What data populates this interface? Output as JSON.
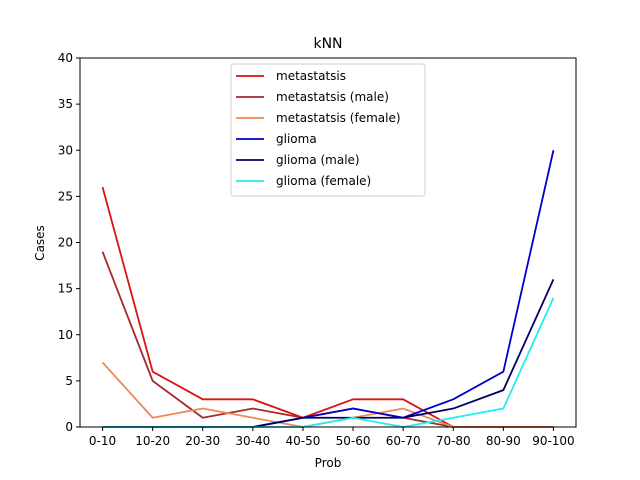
{
  "chart_data": {
    "type": "line",
    "title": "kNN",
    "xlabel": "Prob",
    "ylabel": "Cases",
    "ylim": [
      0,
      40
    ],
    "yticks": [
      0,
      5,
      10,
      15,
      20,
      25,
      30,
      35,
      40
    ],
    "categories": [
      "0-10",
      "10-20",
      "20-30",
      "30-40",
      "40-50",
      "50-60",
      "60-70",
      "70-80",
      "80-90",
      "90-100"
    ],
    "grid": false,
    "legend_position": "top-center",
    "series": [
      {
        "name": "metastatsis",
        "color": "#dd1111",
        "values": [
          26,
          6,
          3,
          3,
          1,
          3,
          3,
          0,
          0,
          0
        ]
      },
      {
        "name": "metastatsis (male)",
        "color": "#a52a2a",
        "values": [
          19,
          5,
          1,
          2,
          1,
          2,
          1,
          0,
          0,
          0
        ]
      },
      {
        "name": "metastatsis (female)",
        "color": "#ee8855",
        "values": [
          7,
          1,
          2,
          1,
          0,
          1,
          2,
          0,
          0,
          0
        ]
      },
      {
        "name": "glioma",
        "color": "#0000cc",
        "values": [
          0,
          0,
          0,
          0,
          1,
          2,
          1,
          3,
          6,
          30
        ]
      },
      {
        "name": "glioma (male)",
        "color": "#000066",
        "values": [
          0,
          0,
          0,
          0,
          1,
          1,
          1,
          2,
          4,
          16
        ]
      },
      {
        "name": "glioma (female)",
        "color": "#22eeee",
        "values": [
          0,
          0,
          0,
          0,
          0,
          1,
          0,
          1,
          2,
          14
        ]
      }
    ]
  }
}
